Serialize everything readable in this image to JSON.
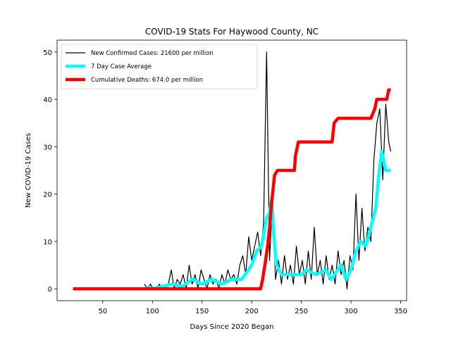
{
  "chart_data": {
    "type": "line",
    "title": "COVID-19 Stats For Haywood County, NC",
    "x_label": "Days Since 2020 Began",
    "y_label": "New COVID-19 Cases",
    "xlim": [
      4,
      356
    ],
    "xticks": [
      50,
      100,
      150,
      200,
      250,
      300,
      350
    ],
    "ylim": [
      -2.5,
      52.5
    ],
    "yticks": [
      0,
      10,
      20,
      30,
      40,
      50
    ],
    "legend": "upper left",
    "series": [
      {
        "name": "New Confirmed Cases: 21600 per million",
        "color": "#000000",
        "x": [
          92,
          95,
          98,
          101,
          104,
          107,
          110,
          113,
          116,
          119,
          122,
          125,
          128,
          131,
          134,
          137,
          140,
          143,
          146,
          149,
          152,
          155,
          158,
          161,
          164,
          167,
          170,
          173,
          176,
          179,
          182,
          185,
          188,
          191,
          194,
          197,
          200,
          203,
          206,
          209,
          212,
          215,
          218,
          221,
          224,
          227,
          230,
          233,
          236,
          239,
          242,
          245,
          248,
          251,
          254,
          257,
          260,
          263,
          266,
          269,
          272,
          275,
          278,
          281,
          284,
          287,
          290,
          293,
          296,
          299,
          302,
          305,
          308,
          311,
          314,
          317,
          320,
          323,
          326,
          329,
          332,
          335,
          338,
          340
        ],
        "values": [
          1,
          0,
          1,
          0,
          0,
          1,
          0,
          0,
          1,
          4,
          0,
          2,
          1,
          3,
          0,
          5,
          1,
          3,
          0,
          4,
          2,
          0,
          3,
          1,
          2,
          0,
          3,
          1,
          4,
          2,
          3,
          1,
          5,
          7,
          3,
          11,
          6,
          9,
          12,
          7,
          14,
          50,
          6,
          19,
          2,
          6,
          1,
          7,
          2,
          5,
          1,
          9,
          3,
          6,
          1,
          8,
          2,
          13,
          3,
          6,
          1,
          7,
          2,
          5,
          1,
          8,
          3,
          6,
          0,
          7,
          4,
          20,
          6,
          17,
          8,
          13,
          10,
          27,
          35,
          38,
          23,
          39,
          31,
          29
        ]
      },
      {
        "name": "7 Day Case Average",
        "color": "#00ffff",
        "x": [
          95,
          100,
          110,
          120,
          130,
          140,
          150,
          160,
          170,
          180,
          190,
          200,
          205,
          210,
          215,
          218,
          220,
          222,
          225,
          230,
          240,
          250,
          255,
          265,
          275,
          280,
          290,
          295,
          300,
          305,
          310,
          315,
          320,
          325,
          328,
          331,
          335,
          340
        ],
        "values": [
          0.5,
          0,
          0.5,
          1,
          0.5,
          2,
          1,
          2,
          1,
          2,
          2,
          5,
          8,
          9,
          15,
          16,
          19,
          12,
          5,
          3,
          3,
          3,
          4,
          3,
          4,
          2,
          5,
          2,
          4,
          8,
          10,
          9,
          13,
          17,
          24,
          29,
          25,
          25
        ]
      },
      {
        "name": "Cumulative Deaths: 674.0 per million",
        "color": "#ff0000",
        "x": [
          20,
          209,
          211,
          214,
          216,
          218,
          220,
          223,
          226,
          243,
          244,
          247,
          281,
          283,
          287,
          320,
          322,
          324,
          326,
          336,
          338,
          340
        ],
        "values": [
          0,
          0,
          2,
          6,
          9,
          13,
          18,
          24,
          25,
          25,
          28,
          31,
          31,
          35,
          36,
          36,
          37,
          38,
          40,
          40,
          42,
          42
        ]
      }
    ]
  }
}
